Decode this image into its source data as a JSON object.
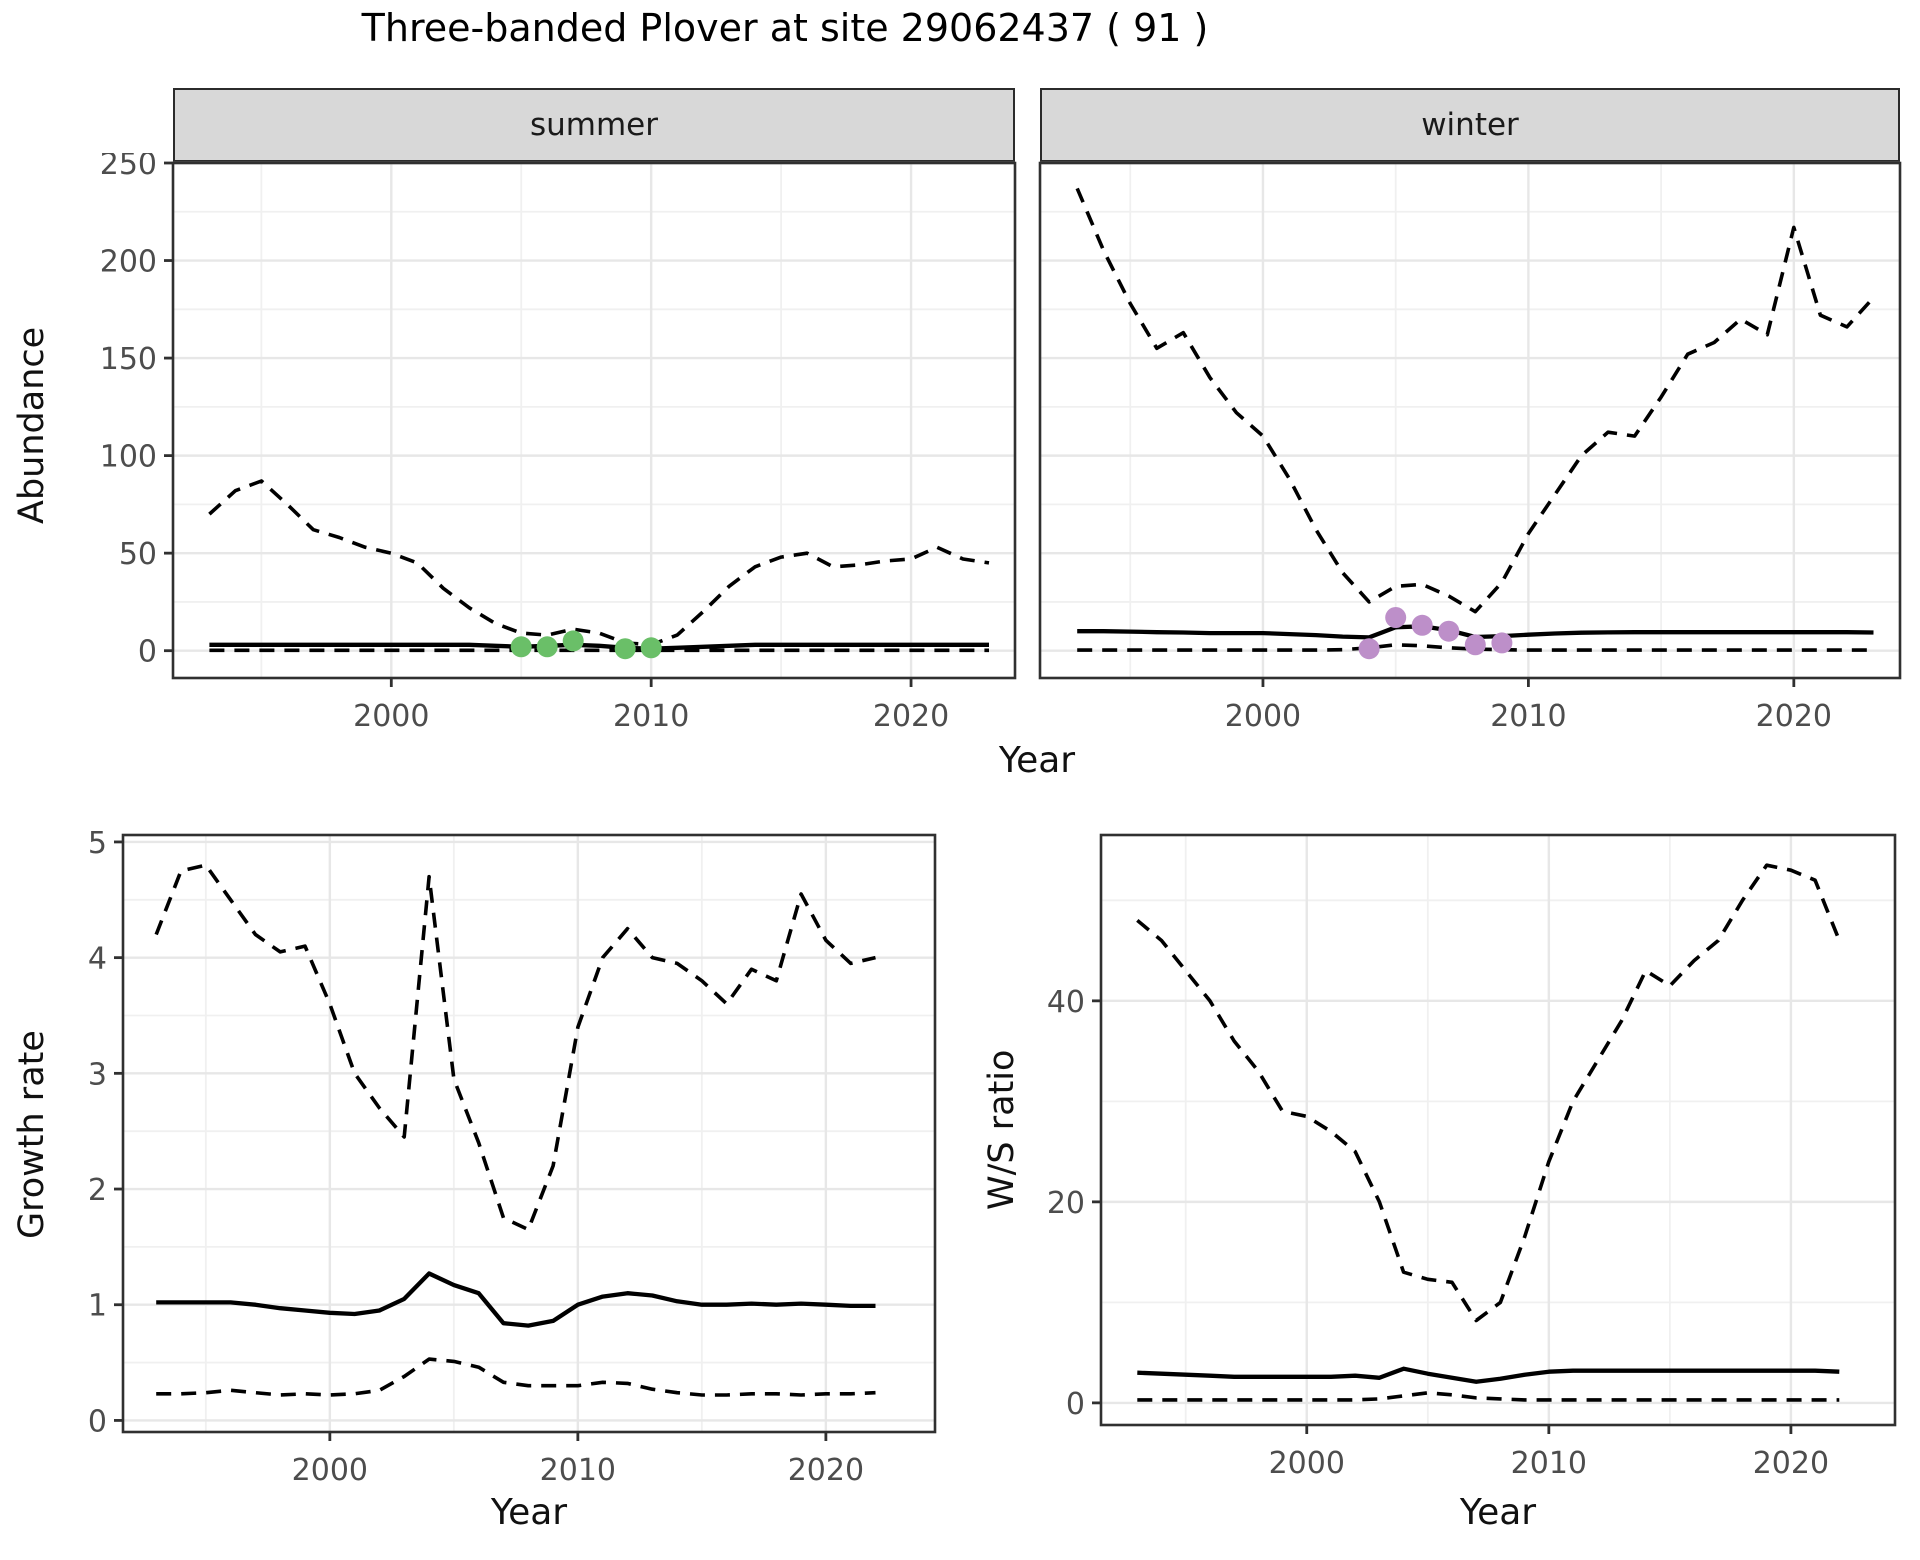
{
  "title": "Three-banded Plover at site 29062437 ( 91 )",
  "colors": {
    "summer_points": "#6abf68",
    "winter_points": "#bd8fc9",
    "line": "#000000",
    "strip_fill": "#d8d8d8",
    "grid_major": "#e7e7e7",
    "grid_minor": "#f0f0f0",
    "tick_label": "#4d4d4d"
  },
  "chart_data": [
    {
      "id": "abundance-summer",
      "type": "line",
      "facet_label": "summer",
      "xlabel": "Year",
      "ylabel": "Abundance",
      "x": [
        1993,
        1994,
        1995,
        1996,
        1997,
        1998,
        1999,
        2000,
        2001,
        2002,
        2003,
        2004,
        2005,
        2006,
        2007,
        2008,
        2009,
        2010,
        2011,
        2012,
        2013,
        2014,
        2015,
        2016,
        2017,
        2018,
        2019,
        2020,
        2021,
        2022,
        2023
      ],
      "x_ticks": [
        2000,
        2010,
        2020
      ],
      "x_minor": [
        1995,
        2005,
        2015
      ],
      "y_ticks": [
        0,
        50,
        100,
        150,
        200,
        250
      ],
      "y_minor": [
        25,
        75,
        125,
        175,
        225
      ],
      "xlim": [
        1991.6,
        2024.0
      ],
      "ylim": [
        -14,
        250
      ],
      "series": [
        {
          "name": "upper-95ci",
          "style": "dashed",
          "values": [
            70,
            82,
            87,
            75,
            62,
            58,
            53,
            50,
            45,
            32,
            22,
            14,
            9,
            8,
            11,
            9,
            4,
            3,
            8,
            20,
            33,
            43,
            48,
            50,
            43,
            44,
            46,
            47,
            53,
            47,
            45
          ]
        },
        {
          "name": "median",
          "style": "solid",
          "values": [
            3,
            3,
            3,
            3,
            3,
            3,
            3,
            3,
            3,
            3,
            3,
            2.5,
            2,
            2.5,
            3,
            2.5,
            1.5,
            1,
            1.5,
            2,
            2.5,
            3,
            3,
            3,
            3,
            3,
            3,
            3,
            3,
            3,
            3
          ]
        },
        {
          "name": "lower-95ci",
          "style": "dashed",
          "values": [
            0.2,
            0.2,
            0.2,
            0.2,
            0.2,
            0.2,
            0.2,
            0.2,
            0.2,
            0.2,
            0.2,
            0.2,
            0.2,
            0.2,
            0.2,
            0.2,
            0.2,
            0.2,
            0.2,
            0.2,
            0.2,
            0.2,
            0.2,
            0.2,
            0.2,
            0.2,
            0.2,
            0.2,
            0.2,
            0.2,
            0.2
          ]
        },
        {
          "name": "observed-counts",
          "style": "points",
          "color": "#6abf68",
          "x": [
            2005,
            2006,
            2007,
            2009,
            2010
          ],
          "values": [
            2,
            2,
            5,
            1,
            1.5
          ]
        }
      ]
    },
    {
      "id": "abundance-winter",
      "type": "line",
      "facet_label": "winter",
      "xlabel": "",
      "ylabel": "",
      "x": [
        1993,
        1994,
        1995,
        1996,
        1997,
        1998,
        1999,
        2000,
        2001,
        2002,
        2003,
        2004,
        2005,
        2006,
        2007,
        2008,
        2009,
        2010,
        2011,
        2012,
        2013,
        2014,
        2015,
        2016,
        2017,
        2018,
        2019,
        2020,
        2021,
        2022,
        2023
      ],
      "x_ticks": [
        2000,
        2010,
        2020
      ],
      "x_minor": [
        1995,
        2005,
        2015
      ],
      "y_ticks": [
        0,
        50,
        100,
        150,
        200,
        250
      ],
      "y_minor": [
        25,
        75,
        125,
        175,
        225
      ],
      "xlim": [
        1991.6,
        2024.0
      ],
      "ylim": [
        -14,
        250
      ],
      "series": [
        {
          "name": "upper-95ci",
          "style": "dashed",
          "values": [
            237,
            205,
            178,
            155,
            163,
            140,
            122,
            110,
            88,
            62,
            40,
            25,
            33,
            34,
            28,
            20,
            35,
            60,
            80,
            100,
            112,
            110,
            130,
            152,
            158,
            170,
            162,
            217,
            172,
            166,
            181
          ]
        },
        {
          "name": "median",
          "style": "solid",
          "values": [
            10,
            10,
            9.8,
            9.5,
            9.3,
            9,
            9,
            9,
            8.5,
            8,
            7.2,
            6.8,
            12,
            12.5,
            10.5,
            7,
            7.5,
            8.2,
            8.8,
            9.2,
            9.4,
            9.5,
            9.5,
            9.5,
            9.5,
            9.5,
            9.5,
            9.5,
            9.5,
            9.5,
            9.3
          ]
        },
        {
          "name": "lower-95ci",
          "style": "dashed",
          "values": [
            0.3,
            0.3,
            0.3,
            0.3,
            0.3,
            0.3,
            0.3,
            0.3,
            0.3,
            0.3,
            0.5,
            1.5,
            3,
            2.5,
            1.5,
            0.8,
            0.5,
            0.3,
            0.3,
            0.3,
            0.3,
            0.3,
            0.3,
            0.3,
            0.3,
            0.3,
            0.3,
            0.3,
            0.3,
            0.3,
            0.3
          ]
        },
        {
          "name": "observed-counts",
          "style": "points",
          "color": "#bd8fc9",
          "x": [
            2004,
            2005,
            2006,
            2007,
            2008,
            2009
          ],
          "values": [
            1,
            17,
            13,
            10,
            3,
            4
          ]
        }
      ]
    },
    {
      "id": "growth-rate",
      "type": "line",
      "facet_label": "",
      "xlabel": "Year",
      "ylabel": "Growth rate",
      "x": [
        1993,
        1994,
        1995,
        1996,
        1997,
        1998,
        1999,
        2000,
        2001,
        2002,
        2003,
        2004,
        2005,
        2006,
        2007,
        2008,
        2009,
        2010,
        2011,
        2012,
        2013,
        2014,
        2015,
        2016,
        2017,
        2018,
        2019,
        2020,
        2021,
        2022
      ],
      "x_ticks": [
        2000,
        2010,
        2020
      ],
      "x_minor": [
        1995,
        2005,
        2015
      ],
      "y_ticks": [
        0,
        1,
        2,
        3,
        4,
        5
      ],
      "y_minor": [
        0.5,
        1.5,
        2.5,
        3.5,
        4.5
      ],
      "xlim": [
        1991.66,
        2024.4
      ],
      "ylim": [
        -0.1,
        5.06
      ],
      "series": [
        {
          "name": "upper-95ci",
          "style": "dashed",
          "values": [
            4.2,
            4.75,
            4.8,
            4.5,
            4.2,
            4.05,
            4.1,
            3.6,
            3.0,
            2.7,
            2.45,
            4.7,
            2.95,
            2.4,
            1.75,
            1.65,
            2.2,
            3.4,
            4.0,
            4.25,
            4.0,
            3.95,
            3.8,
            3.6,
            3.9,
            3.8,
            4.55,
            4.15,
            3.95,
            4.0
          ]
        },
        {
          "name": "median",
          "style": "solid",
          "values": [
            1.02,
            1.02,
            1.02,
            1.02,
            1.0,
            0.97,
            0.95,
            0.93,
            0.92,
            0.95,
            1.05,
            1.27,
            1.17,
            1.1,
            0.84,
            0.82,
            0.86,
            1.0,
            1.07,
            1.1,
            1.08,
            1.03,
            1.0,
            1.0,
            1.01,
            1.0,
            1.01,
            1.0,
            0.99,
            0.99
          ]
        },
        {
          "name": "lower-95ci",
          "style": "dashed",
          "values": [
            0.23,
            0.23,
            0.24,
            0.26,
            0.24,
            0.22,
            0.23,
            0.22,
            0.23,
            0.26,
            0.38,
            0.53,
            0.51,
            0.46,
            0.33,
            0.3,
            0.3,
            0.3,
            0.33,
            0.32,
            0.27,
            0.24,
            0.22,
            0.22,
            0.23,
            0.23,
            0.22,
            0.23,
            0.23,
            0.24
          ]
        }
      ]
    },
    {
      "id": "ws-ratio",
      "type": "line",
      "facet_label": "",
      "xlabel": "Year",
      "ylabel": "W/S ratio",
      "x": [
        1993,
        1994,
        1995,
        1996,
        1997,
        1998,
        1999,
        2000,
        2001,
        2002,
        2003,
        2004,
        2005,
        2006,
        2007,
        2008,
        2009,
        2010,
        2011,
        2012,
        2013,
        2014,
        2015,
        2016,
        2017,
        2018,
        2019,
        2020,
        2021,
        2022
      ],
      "x_ticks": [
        2000,
        2010,
        2020
      ],
      "x_minor": [
        1995,
        2005,
        2015
      ],
      "y_ticks": [
        0,
        20,
        40
      ],
      "y_minor": [
        10,
        30,
        50
      ],
      "xlim": [
        1991.5,
        2024.3
      ],
      "ylim": [
        -2.2,
        56.5
      ],
      "series": [
        {
          "name": "upper-95ci",
          "style": "dashed",
          "values": [
            48,
            46,
            43,
            40,
            36,
            33,
            29,
            28.5,
            27,
            25,
            20,
            13,
            12.3,
            12,
            8.2,
            10,
            16.5,
            24,
            30,
            34,
            38,
            43,
            41.5,
            44,
            46,
            50,
            53.5,
            53,
            52,
            46
          ]
        },
        {
          "name": "median",
          "style": "solid",
          "values": [
            3.0,
            2.9,
            2.8,
            2.7,
            2.6,
            2.6,
            2.6,
            2.6,
            2.6,
            2.7,
            2.5,
            3.4,
            2.9,
            2.5,
            2.1,
            2.4,
            2.8,
            3.1,
            3.2,
            3.2,
            3.2,
            3.2,
            3.2,
            3.2,
            3.2,
            3.2,
            3.2,
            3.2,
            3.2,
            3.1
          ]
        },
        {
          "name": "lower-95ci",
          "style": "dashed",
          "values": [
            0.3,
            0.3,
            0.3,
            0.3,
            0.3,
            0.3,
            0.3,
            0.3,
            0.3,
            0.3,
            0.4,
            0.7,
            1.0,
            0.8,
            0.5,
            0.4,
            0.3,
            0.3,
            0.3,
            0.3,
            0.3,
            0.3,
            0.3,
            0.3,
            0.3,
            0.3,
            0.3,
            0.3,
            0.3,
            0.3
          ]
        }
      ]
    }
  ]
}
